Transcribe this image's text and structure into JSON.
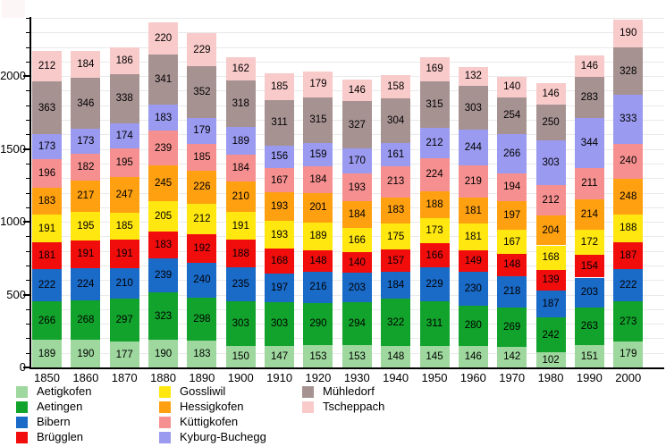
{
  "chart_data": {
    "type": "bar",
    "stacked": true,
    "title": "",
    "xlabel": "",
    "ylabel": "",
    "ylim": [
      0,
      2400
    ],
    "grid": true,
    "legend_position": "bottom",
    "y_major_ticks": [
      0,
      500,
      1000,
      1500,
      2000
    ],
    "y_minor_step": 100,
    "categories": [
      "1850",
      "1860",
      "1870",
      "1880",
      "1890",
      "1900",
      "1910",
      "1920",
      "1930",
      "1940",
      "1950",
      "1960",
      "1970",
      "1980",
      "1990",
      "2000"
    ],
    "series": [
      {
        "name": "Aetigkofen",
        "color": "#9ed89e",
        "values": [
          189,
          190,
          177,
          190,
          183,
          150,
          147,
          153,
          153,
          148,
          145,
          146,
          142,
          102,
          151,
          179
        ]
      },
      {
        "name": "Aetingen",
        "color": "#12a32c",
        "values": [
          266,
          268,
          297,
          323,
          298,
          303,
          303,
          290,
          294,
          322,
          311,
          280,
          269,
          242,
          263,
          273
        ]
      },
      {
        "name": "Bibern",
        "color": "#1a6ac8",
        "values": [
          222,
          224,
          210,
          239,
          240,
          235,
          197,
          216,
          203,
          184,
          229,
          230,
          218,
          187,
          203,
          222
        ]
      },
      {
        "name": "Brügglen",
        "color": "#f20d0d",
        "values": [
          181,
          191,
          191,
          183,
          192,
          188,
          168,
          148,
          140,
          157,
          166,
          149,
          148,
          139,
          154,
          187
        ]
      },
      {
        "name": "Gossliwil",
        "color": "#ffe70f",
        "values": [
          191,
          195,
          185,
          205,
          212,
          191,
          193,
          189,
          166,
          175,
          173,
          181,
          167,
          168,
          172,
          188
        ]
      },
      {
        "name": "Hessigkofen",
        "color": "#ffa011",
        "values": [
          183,
          217,
          247,
          245,
          226,
          210,
          193,
          201,
          184,
          183,
          188,
          181,
          197,
          204,
          214,
          248
        ]
      },
      {
        "name": "Küttigkofen",
        "color": "#f69090",
        "values": [
          196,
          182,
          195,
          239,
          185,
          184,
          167,
          184,
          193,
          213,
          224,
          219,
          194,
          212,
          211,
          240
        ]
      },
      {
        "name": "Kyburg-Buchegg",
        "color": "#9a9af0",
        "values": [
          173,
          173,
          174,
          183,
          179,
          189,
          156,
          159,
          170,
          161,
          212,
          244,
          266,
          303,
          344,
          333
        ]
      },
      {
        "name": "Mühledorf",
        "color": "#a79292",
        "values": [
          363,
          346,
          338,
          341,
          352,
          318,
          311,
          315,
          327,
          304,
          315,
          303,
          254,
          250,
          283,
          328
        ]
      },
      {
        "name": "Tscheppach",
        "color": "#f9caca",
        "values": [
          212,
          184,
          186,
          220,
          229,
          162,
          185,
          179,
          146,
          158,
          169,
          132,
          140,
          146,
          146,
          190
        ]
      }
    ]
  }
}
